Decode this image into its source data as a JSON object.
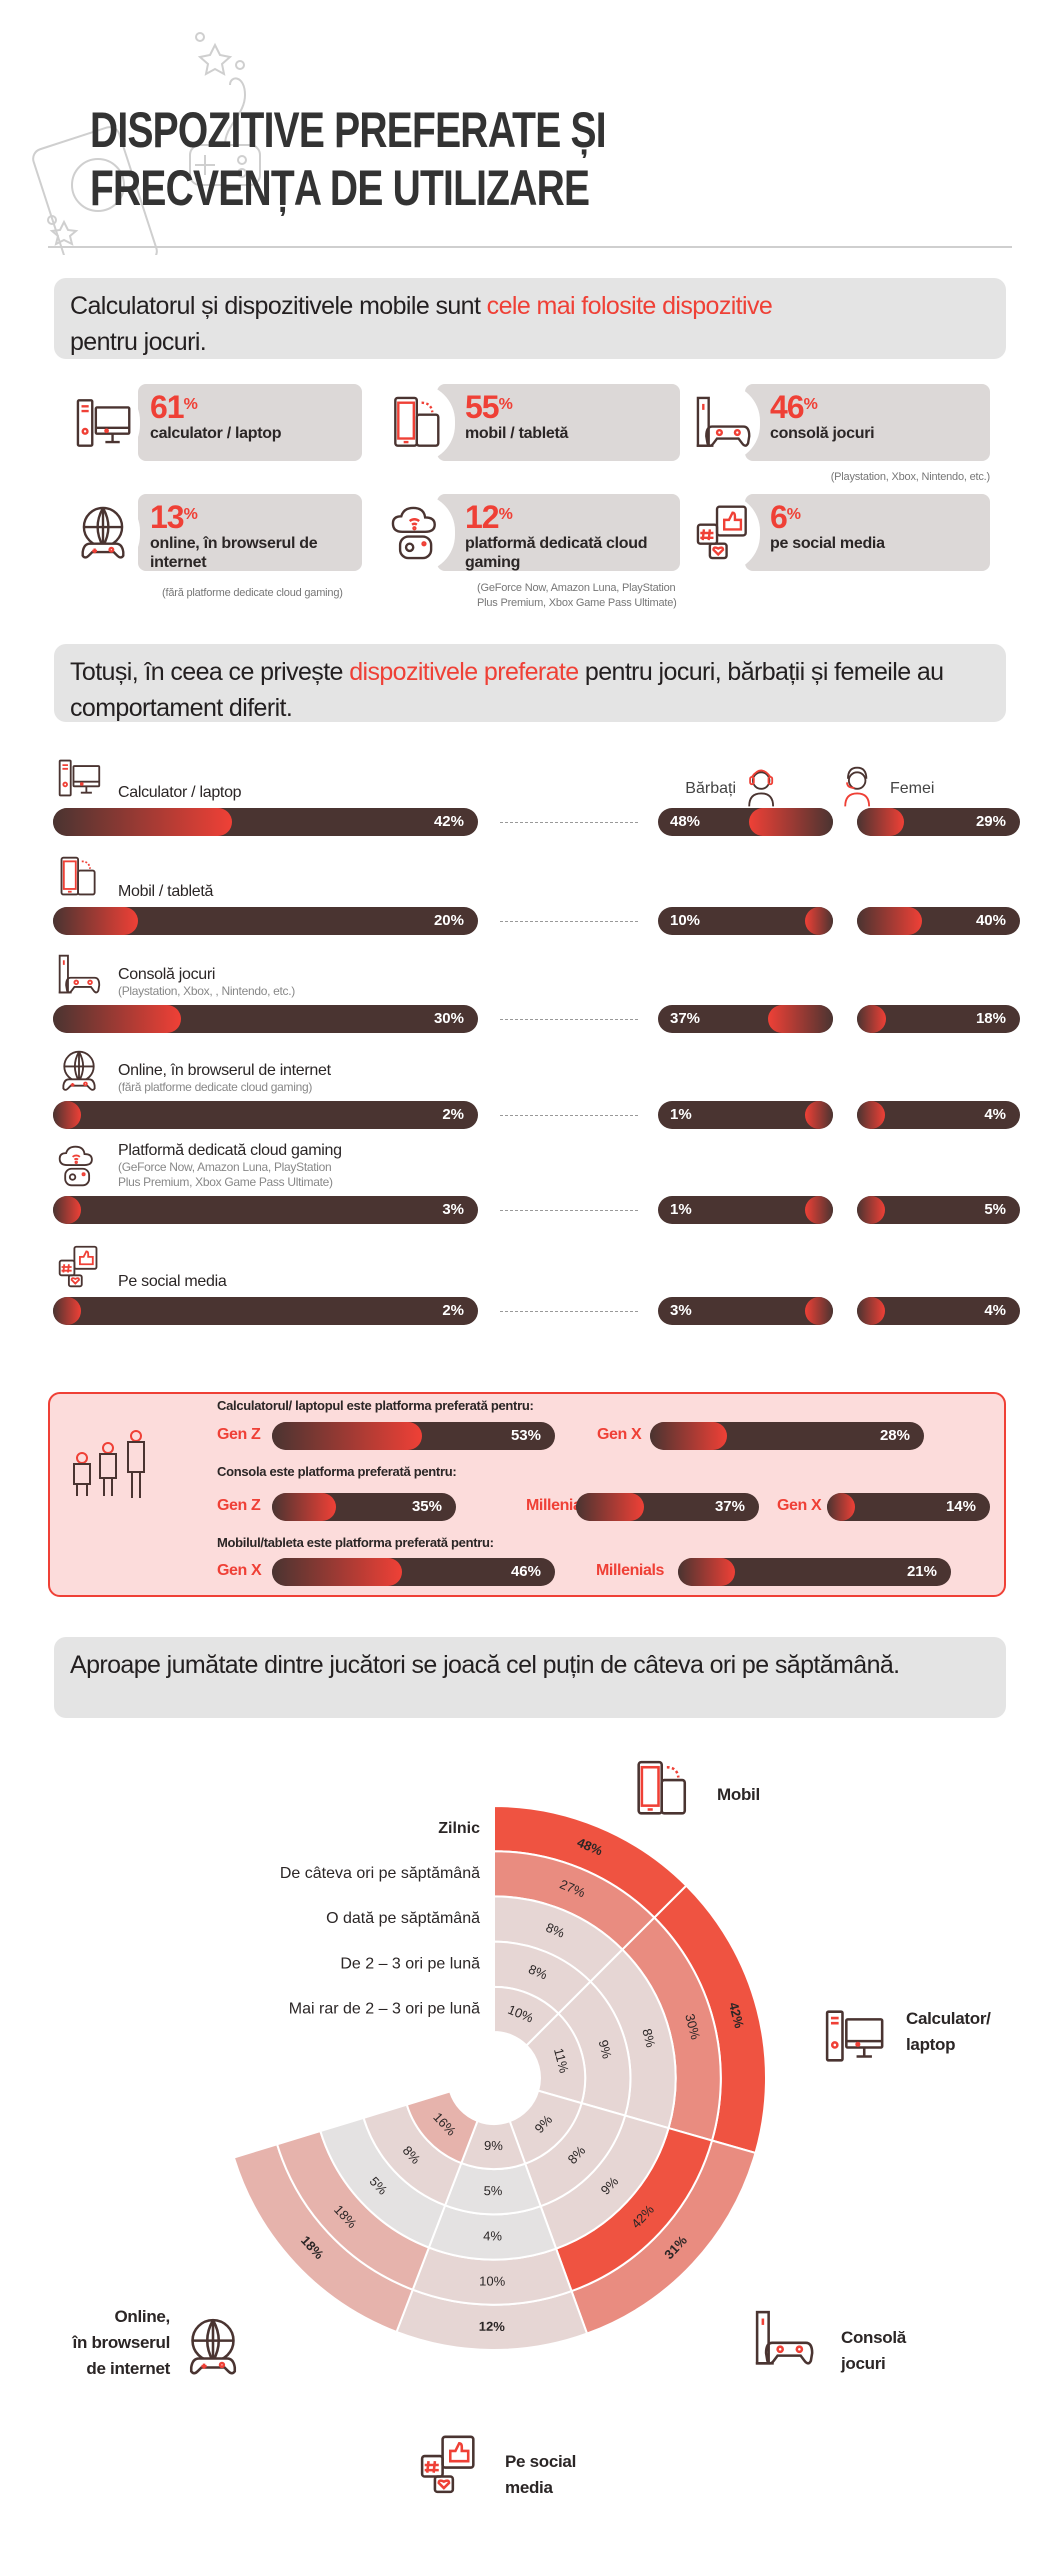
{
  "header": {
    "title_line1": "DISPOZITIVE PREFERATE ȘI",
    "title_line2": "FRECVENȚA DE UTILIZARE"
  },
  "section1": {
    "text_before": "Calculatorul și dispozitivele mobile sunt ",
    "highlight": "cele mai folosite dispozitive",
    "text_after": "pentru jocuri.",
    "stats": [
      {
        "icon": "computer-icon",
        "value": "61",
        "unit": "%",
        "label": "calculator / laptop",
        "note": ""
      },
      {
        "icon": "mobile-tablet-icon",
        "value": "55",
        "unit": "%",
        "label": "mobil / tabletă",
        "note": ""
      },
      {
        "icon": "game-console-icon",
        "value": "46",
        "unit": "%",
        "label": "consolă jocuri",
        "note": "(Playstation, Xbox, Nintendo, etc.)"
      },
      {
        "icon": "globe-gamepad-icon",
        "value": "13",
        "unit": "%",
        "label": "online, în browserul de internet",
        "note": "(fără platforme dedicate cloud gaming)"
      },
      {
        "icon": "cloud-gaming-icon",
        "value": "12",
        "unit": "%",
        "label": "platformă dedicată cloud gaming",
        "note": "(GeForce Now, Amazon Luna, PlayStation Plus Premium, Xbox Game Pass Ultimate)"
      },
      {
        "icon": "social-media-icon",
        "value": "6",
        "unit": "%",
        "label": "pe social media",
        "note": ""
      }
    ]
  },
  "section2": {
    "text_before": "Totuși, în ceea ce privește ",
    "highlight": "dispozitivele preferate",
    "text_after": " pentru jocuri, bărbații și femeile au comportament diferit.",
    "men_label": "Bărbați",
    "women_label": "Femei",
    "rows": [
      {
        "icon": "computer-icon",
        "label": "Calculator / laptop",
        "sub": [],
        "total": 42,
        "men": 48,
        "women": 29
      },
      {
        "icon": "mobile-tablet-icon",
        "label": "Mobil / tabletă",
        "sub": [],
        "total": 20,
        "men": 10,
        "women": 40
      },
      {
        "icon": "game-console-icon",
        "label": "Consolă jocuri",
        "sub": [
          "(Playstation, Xbox, , Nintendo, etc.)"
        ],
        "total": 30,
        "men": 37,
        "women": 18
      },
      {
        "icon": "globe-gamepad-icon",
        "label": "Online, în browserul de internet",
        "sub": [
          "(fără platforme dedicate cloud gaming)"
        ],
        "total": 2,
        "men": 1,
        "women": 4
      },
      {
        "icon": "cloud-gaming-icon",
        "label": "Platformă dedicată cloud gaming",
        "sub": [
          "(GeForce Now, Amazon Luna, PlayStation",
          "Plus Premium, Xbox Game Pass Ultimate)"
        ],
        "total": 3,
        "men": 1,
        "women": 5
      },
      {
        "icon": "social-media-icon",
        "label": "Pe social media",
        "sub": [],
        "total": 2,
        "men": 3,
        "women": 4
      }
    ]
  },
  "generations": {
    "groups": [
      {
        "heading": "Calculatorul/ laptopul este platforma preferată pentru:",
        "items": [
          {
            "label": "Gen Z",
            "value": 53
          },
          {
            "label": "Gen X",
            "value": 28
          }
        ]
      },
      {
        "heading": "Consola este platforma preferată pentru:",
        "items": [
          {
            "label": "Gen Z",
            "value": 35
          },
          {
            "label": "Millenials",
            "value": 37
          },
          {
            "label": "Gen X",
            "value": 14
          }
        ]
      },
      {
        "heading": "Mobilul/tableta este platforma preferată pentru:",
        "items": [
          {
            "label": "Gen X",
            "value": 46
          },
          {
            "label": "Millenials",
            "value": 21
          }
        ]
      }
    ]
  },
  "section3": {
    "text": "Aproape jumătate dintre jucători se joacă cel puțin de câteva ori pe săptămână."
  },
  "chart_data": {
    "type": "heatmap",
    "layout": "radial",
    "categories": [
      "Mobil",
      "Calculator/ laptop",
      "Consolă jocuri",
      "Pe social media",
      "Online, în browserul de internet"
    ],
    "category_lines": [
      [
        "Mobil"
      ],
      [
        "Calculator/",
        "laptop"
      ],
      [
        "Consolă",
        "jocuri"
      ],
      [
        "Pe social",
        "media"
      ],
      [
        "Online,",
        "în browserul",
        "de internet"
      ]
    ],
    "series": [
      {
        "name": "Zilnic",
        "values": [
          48,
          42,
          31,
          12,
          18
        ]
      },
      {
        "name": "De câteva ori pe săptămână",
        "values": [
          27,
          30,
          42,
          10,
          18
        ]
      },
      {
        "name": "O dată pe săptămână",
        "values": [
          8,
          8,
          9,
          4,
          5
        ]
      },
      {
        "name": "De 2 – 3 ori pe lună",
        "values": [
          8,
          9,
          8,
          5,
          8
        ]
      },
      {
        "name": "Mai rar de 2 – 3 ori pe lună",
        "values": [
          10,
          11,
          9,
          9,
          16
        ]
      }
    ],
    "unit": "%",
    "colors": {
      "high": "#ef5341",
      "mid": "#e98c80",
      "low": "#e6b3ac",
      "lower": "#e6d6d4",
      "lowest": "#e4e2e2"
    }
  },
  "colors": {
    "accent": "#ef4036",
    "bar": "#4a3431",
    "box": "#e4e4e4",
    "gen_box": "#fcdcdb"
  }
}
